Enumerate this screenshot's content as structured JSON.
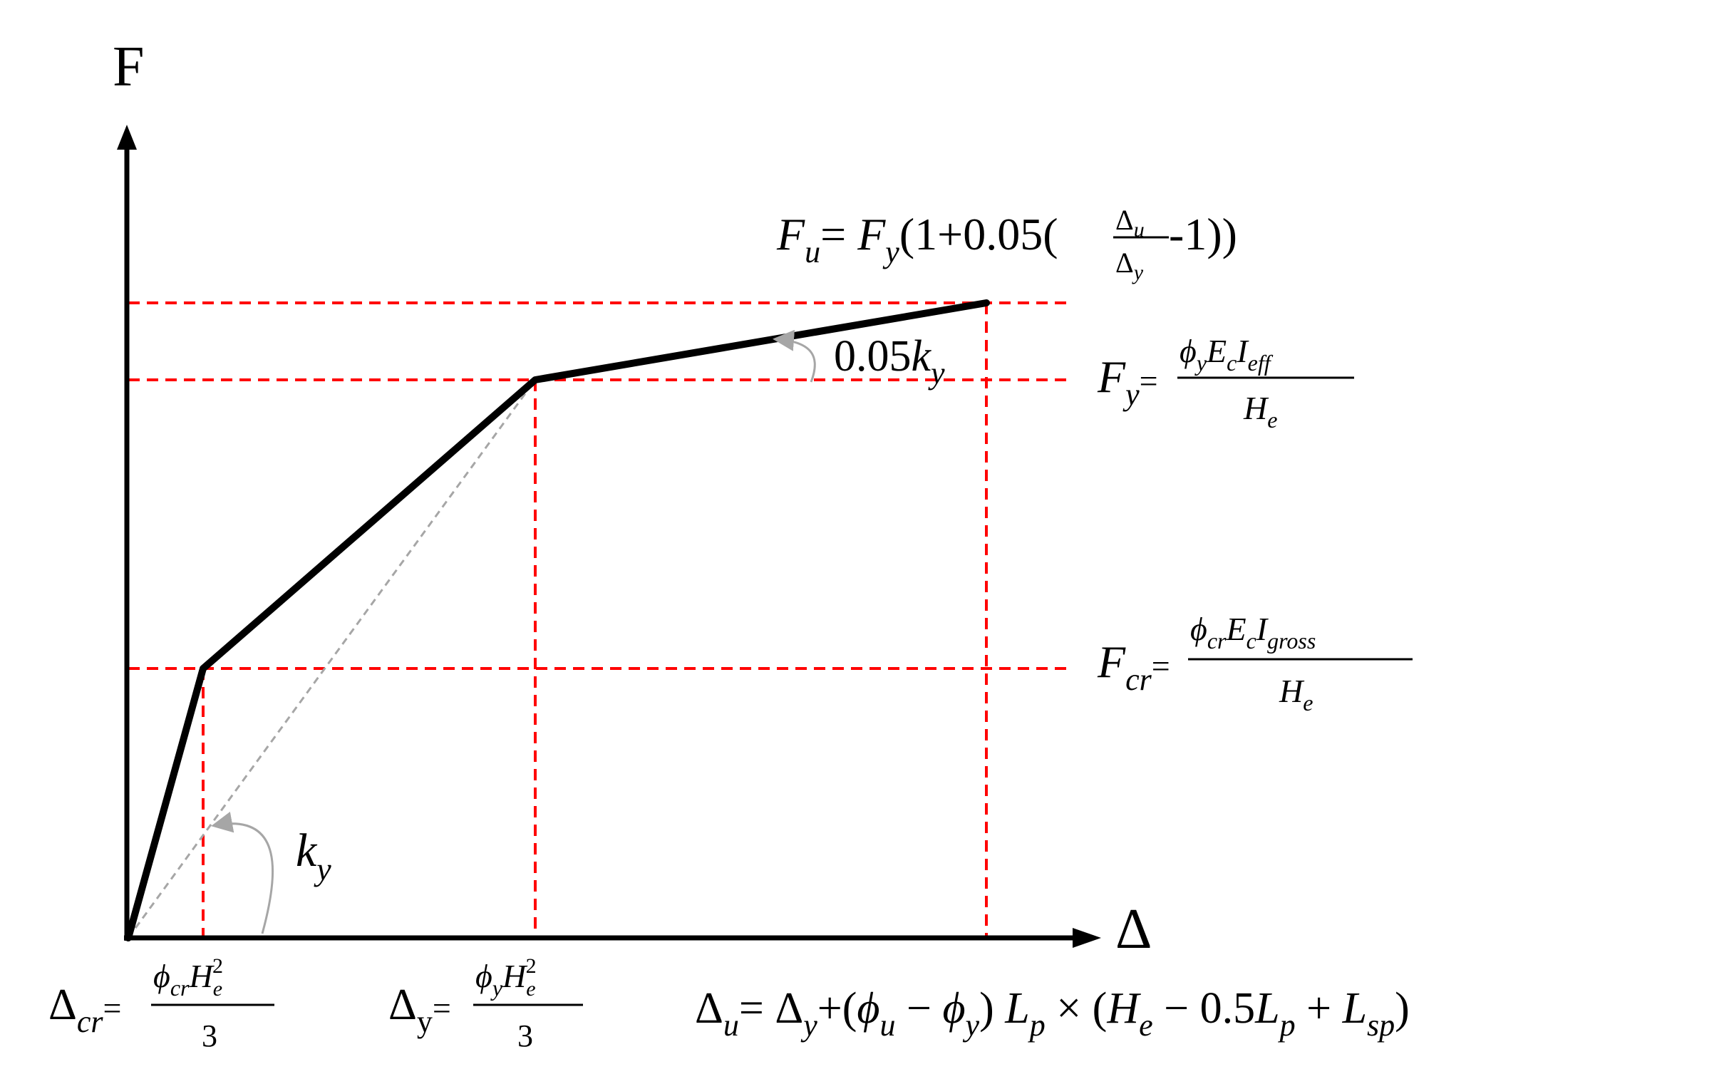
{
  "axes": {
    "y_label": "F",
    "x_label": "Δ"
  },
  "slopes": {
    "ky_label": {
      "base": "k",
      "sub": "y"
    },
    "post_yield_label": {
      "coef": "0.05",
      "base": "k",
      "sub": "y"
    }
  },
  "equations": {
    "fu": {
      "lhs_base": "F",
      "lhs_sub": "u",
      "eq": "=",
      "fy_base": "F",
      "fy_sub": "y",
      "open": "(1+0.05(",
      "num_base": "Δ",
      "num_sub": "u",
      "den_base": "Δ",
      "den_sub": "y",
      "close": "-1))"
    },
    "fy": {
      "lhs_base": "F",
      "lhs_sub": "y",
      "eq": "=",
      "numerator": "ϕ",
      "num_sub1": "y",
      "num_e": "E",
      "num_sub2": "c",
      "num_i": "I",
      "num_sub3": "eff",
      "den_base": "H",
      "den_sub": "e"
    },
    "fcr": {
      "lhs_base": "F",
      "lhs_sub": "cr",
      "eq": "=",
      "numerator": "ϕ",
      "num_sub1": "cr",
      "num_e": "E",
      "num_sub2": "c",
      "num_i": "I",
      "num_sub3": "gross",
      "den_base": "H",
      "den_sub": "e"
    },
    "dcr": {
      "lhs_base": "Δ",
      "lhs_sub": "cr",
      "eq": "=",
      "num_phi": "ϕ",
      "num_sub": "cr",
      "num_h": "H",
      "num_h_sub": "e",
      "num_h_sup": "2",
      "den": "3"
    },
    "dy": {
      "lhs_base": "Δ",
      "lhs_sub": "y",
      "eq": "=",
      "num_phi": "ϕ",
      "num_sub": "y",
      "num_h": "H",
      "num_h_sub": "e",
      "num_h_sup": "2",
      "den": "3"
    },
    "du": {
      "lhs_base": "Δ",
      "lhs_sub": "u",
      "eq": "=",
      "dy_base": "Δ",
      "dy_sub": "y",
      "plus_open": "+(",
      "phi_u": "ϕ",
      "phi_u_sub": "u",
      "minus": "−",
      "phi_y": "ϕ",
      "phi_y_sub": "y",
      "close": ")",
      "lp": "L",
      "lp_sub": "p",
      "times": "×",
      "open2": "(",
      "he": "H",
      "he_sub": "e",
      "minus2": "−",
      "half": "0.5",
      "lp2": "L",
      "lp2_sub": "p",
      "plus": "+",
      "lsp": "L",
      "lsp_sub": "sp",
      "close2": ")"
    }
  },
  "colors": {
    "curve": "#000000",
    "guides": "#ff0000",
    "secant": "#a6a6a6"
  }
}
